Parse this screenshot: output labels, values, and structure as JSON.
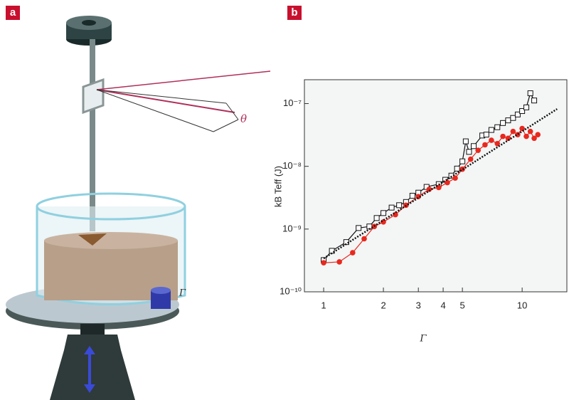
{
  "panels": [
    "a",
    "b"
  ],
  "illustration": {
    "theta_label": "θ",
    "gamma_label": "Γ"
  },
  "chart_data": {
    "type": "line",
    "xlabel": "Γ",
    "ylabel": "kB Teff (J)",
    "log_x": true,
    "log_y": true,
    "xlim": [
      0.8,
      16.8
    ],
    "ylim": [
      1e-10,
      2.4e-07
    ],
    "xticks": [
      1,
      2,
      3,
      4,
      5,
      10
    ],
    "yticks": [
      {
        "value": 1e-10,
        "label": "10⁻¹⁰"
      },
      {
        "value": 1e-09,
        "label": "10⁻⁹"
      },
      {
        "value": 1e-08,
        "label": "10⁻⁸"
      },
      {
        "value": 1e-07,
        "label": "10⁻⁷"
      }
    ],
    "series": [
      {
        "color": "#111111",
        "marker": "square",
        "x": [
          1.0,
          1.1,
          1.3,
          1.5,
          1.7,
          1.85,
          2.0,
          2.2,
          2.4,
          2.6,
          2.8,
          3.0,
          3.3,
          3.8,
          4.1,
          4.4,
          4.7,
          5.0,
          5.2,
          5.4,
          5.7,
          6.3,
          6.6,
          7.0,
          7.5,
          8.0,
          8.5,
          9.0,
          9.5,
          10.0,
          10.5,
          11.0,
          11.5
        ],
        "values": [
          3.2e-10,
          4.5e-10,
          6.2e-10,
          1.04e-09,
          1.1e-09,
          1.5e-09,
          1.8e-09,
          2.2e-09,
          2.4e-09,
          2.7e-09,
          3.4e-09,
          3.8e-09,
          4.7e-09,
          5.2e-09,
          6.1e-09,
          7.1e-09,
          9.2e-09,
          1.2e-08,
          2.5e-08,
          1.7e-08,
          2.1e-08,
          3.1e-08,
          3.2e-08,
          3.8e-08,
          4.2e-08,
          4.9e-08,
          5.4e-08,
          5.9e-08,
          6.7e-08,
          7.6e-08,
          8.7e-08,
          1.46e-07,
          1.12e-07
        ]
      },
      {
        "color": "#e8281e",
        "marker": "circle",
        "x": [
          1.0,
          1.2,
          1.4,
          1.6,
          1.8,
          2.0,
          2.3,
          2.6,
          3.0,
          3.4,
          3.8,
          4.2,
          4.6,
          5.0,
          5.5,
          6.0,
          6.5,
          7.0,
          7.5,
          8.0,
          8.5,
          9.0,
          9.5,
          10.0,
          10.5,
          11.0,
          11.5,
          12.0
        ],
        "values": [
          2.9e-10,
          3e-10,
          4.2e-10,
          7e-10,
          1.1e-09,
          1.3e-09,
          1.7e-09,
          2.4e-09,
          3.3e-09,
          4.3e-09,
          4.6e-09,
          5.5e-09,
          6.5e-09,
          9e-09,
          1.3e-08,
          1.8e-08,
          2.2e-08,
          2.6e-08,
          2.3e-08,
          3e-08,
          2.8e-08,
          3.6e-08,
          3.2e-08,
          4e-08,
          3e-08,
          3.6e-08,
          2.8e-08,
          3.2e-08
        ]
      },
      {
        "color": "#111111",
        "marker": null,
        "dotted": true,
        "x": [
          1,
          15
        ],
        "values": [
          3.4e-10,
          8.2e-08
        ]
      }
    ]
  }
}
